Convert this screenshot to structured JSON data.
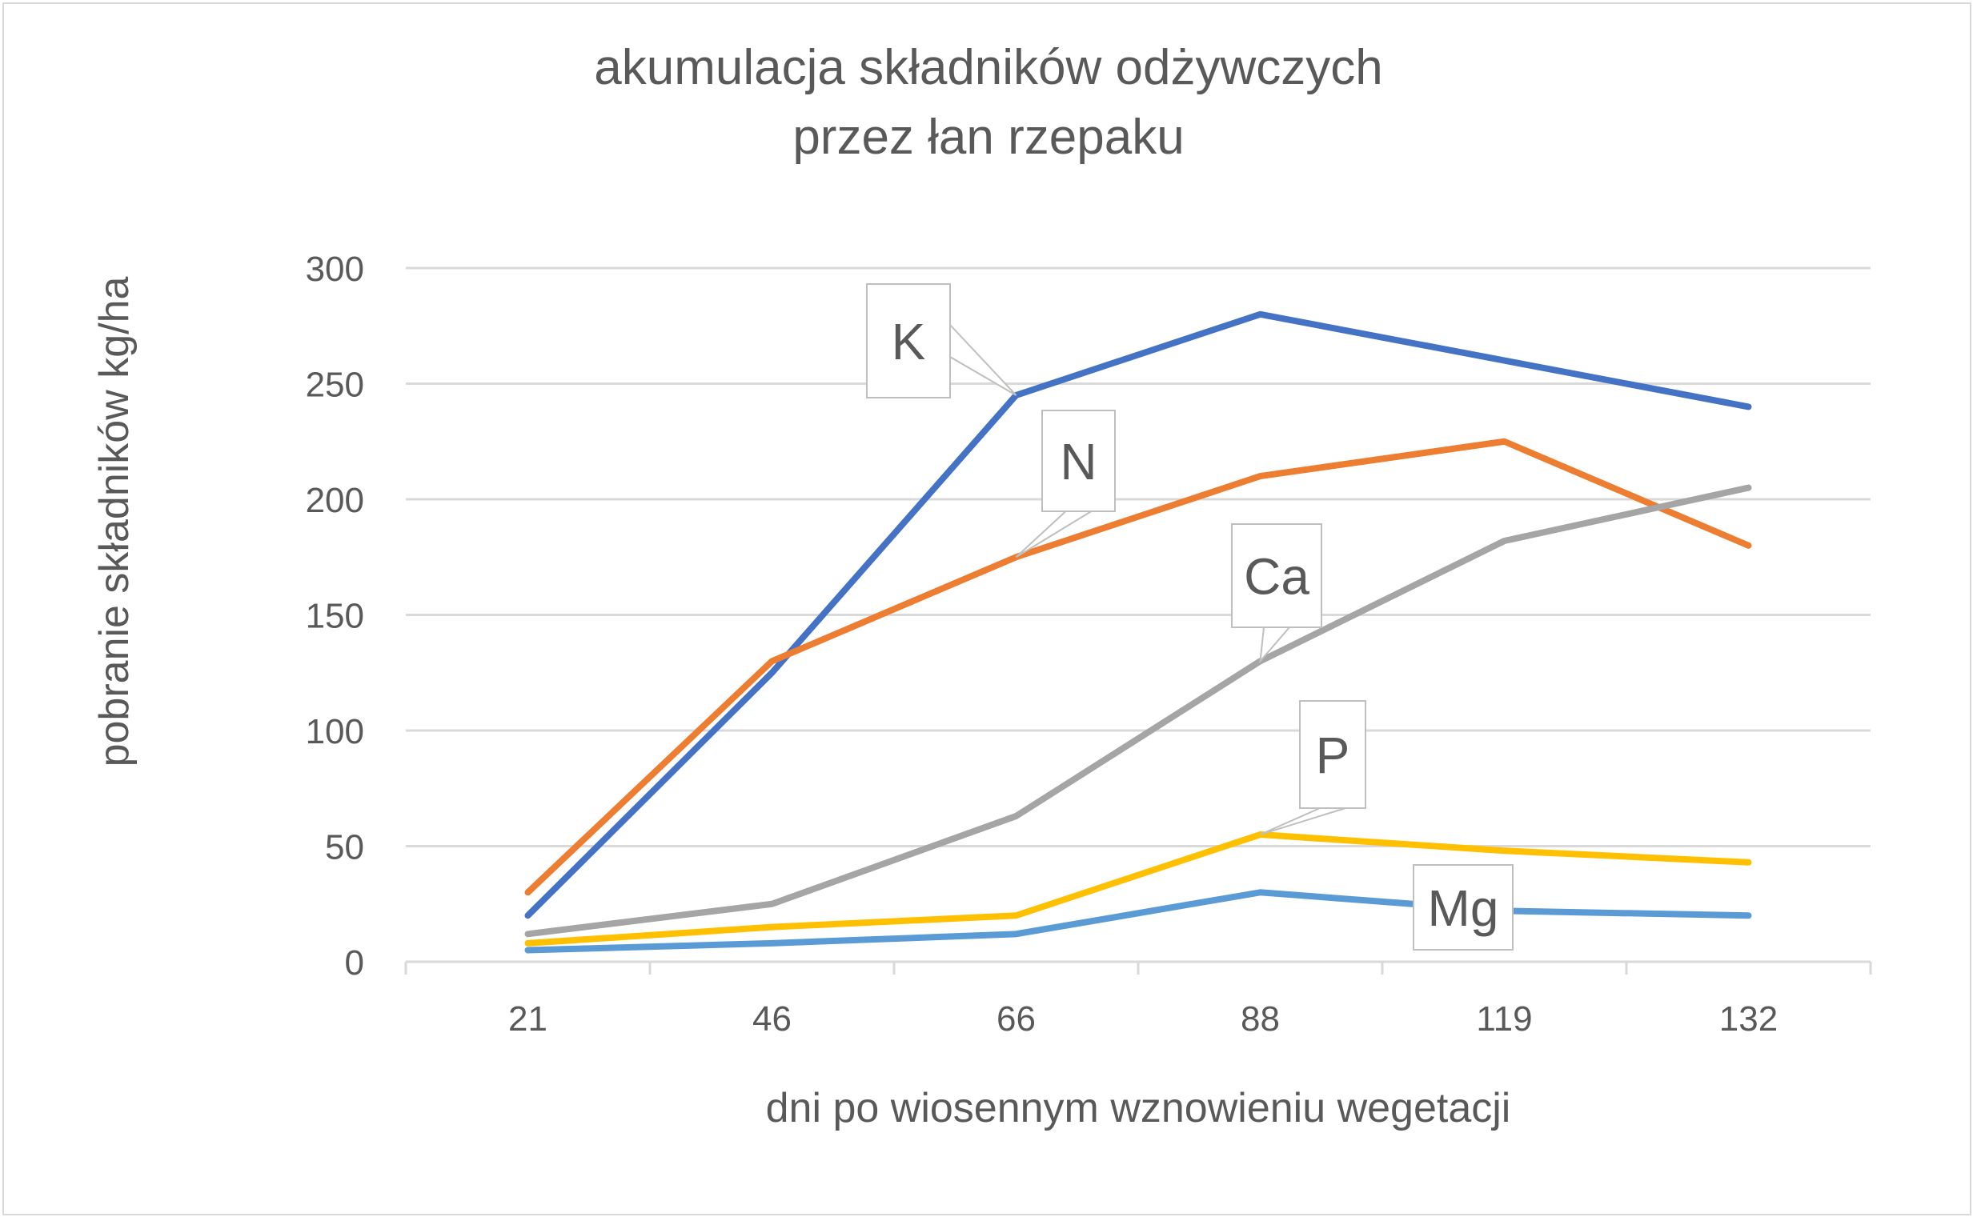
{
  "chart_data": {
    "type": "line",
    "title": [
      "akumulacja składników odżywczych",
      "przez łan rzepaku"
    ],
    "xlabel": "dni po wiosennym wznowieniu wegetacji",
    "ylabel": "pobranie składników kg/ha",
    "categories": [
      "21",
      "46",
      "66",
      "88",
      "119",
      "132"
    ],
    "ylim": [
      0,
      300
    ],
    "yticks": [
      0,
      50,
      100,
      150,
      200,
      250,
      300
    ],
    "grid": true,
    "series": [
      {
        "name": "K",
        "color": "#4472C4",
        "values": [
          20,
          125,
          245,
          280,
          260,
          240
        ],
        "label_at": 2
      },
      {
        "name": "N",
        "color": "#ED7D31",
        "values": [
          30,
          130,
          175,
          210,
          225,
          180
        ],
        "label_at": 2
      },
      {
        "name": "Ca",
        "color": "#A5A5A5",
        "values": [
          12,
          25,
          63,
          130,
          182,
          205
        ],
        "label_at": 3
      },
      {
        "name": "P",
        "color": "#FFC000",
        "values": [
          8,
          15,
          20,
          55,
          48,
          43
        ],
        "label_at": 3
      },
      {
        "name": "Mg",
        "color": "#5B9BD5",
        "values": [
          5,
          8,
          12,
          30,
          22,
          20
        ],
        "label_at": 4
      }
    ]
  }
}
